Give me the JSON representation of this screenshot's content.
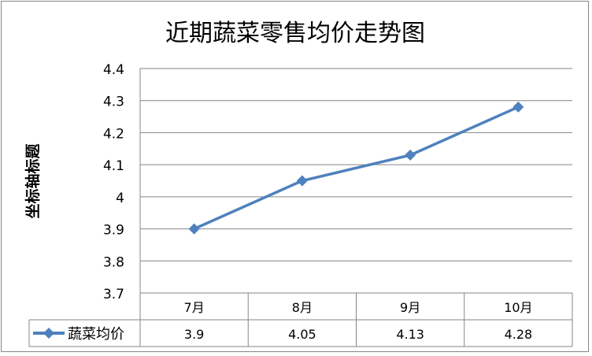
{
  "chart_data": {
    "type": "line",
    "title": "近期蔬菜零售均价走势图",
    "ylabel": "坐标轴标题",
    "xlabel": "",
    "categories": [
      "7月",
      "8月",
      "9月",
      "10月"
    ],
    "series": [
      {
        "name": "蔬菜均价",
        "values": [
          3.9,
          4.05,
          4.13,
          4.28
        ],
        "color": "#4F81BD",
        "marker": "diamond"
      }
    ],
    "ylim": [
      3.7,
      4.4
    ],
    "yticks": [
      "3.7",
      "3.8",
      "3.9",
      "4",
      "4.1",
      "4.2",
      "4.3",
      "4.4"
    ],
    "table_values": [
      "3.9",
      "4.05",
      "4.13",
      "4.28"
    ],
    "grid": true,
    "legend": "data-table"
  }
}
